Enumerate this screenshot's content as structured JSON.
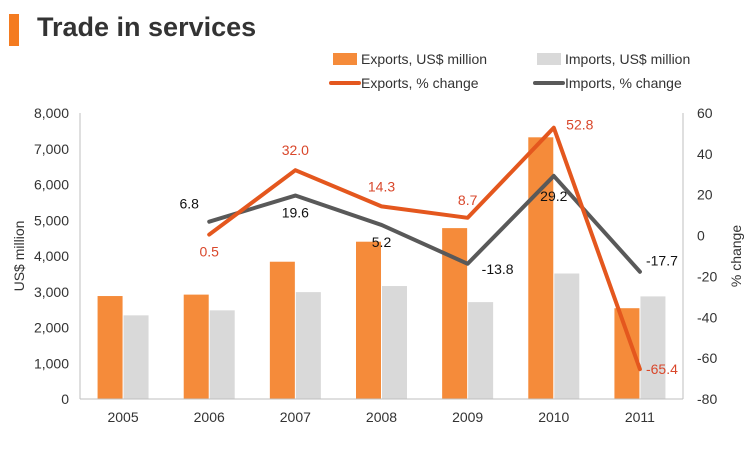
{
  "page_title": "Trade in services",
  "colors": {
    "accent": "#f47b20",
    "exports_bar": "#f58b3a",
    "imports_bar": "#d9d9d9",
    "exports_line": "#e4571e",
    "imports_line": "#595959",
    "exports_label": "#d9472b",
    "axis_text": "#333333"
  },
  "chart_data": {
    "type": "bar",
    "title": "Trade in services",
    "categories": [
      "2005",
      "2006",
      "2007",
      "2008",
      "2009",
      "2010",
      "2011"
    ],
    "ylabel": "US$ million",
    "ylim": [
      0,
      8000
    ],
    "yticks": [
      "0",
      "1,000",
      "2,000",
      "3,000",
      "4,000",
      "5,000",
      "6,000",
      "7,000",
      "8,000"
    ],
    "y2label": "% change",
    "y2lim": [
      -80,
      60
    ],
    "y2ticks": [
      "-80",
      "-60",
      "-40",
      "-20",
      "0",
      "20",
      "40",
      "60"
    ],
    "grid": false,
    "legend_position": "top-right",
    "series": [
      {
        "name": "Exports, US$ million",
        "type": "bar",
        "axis": "left",
        "values": [
          2880,
          2920,
          3840,
          4400,
          4780,
          7320,
          2540
        ]
      },
      {
        "name": "Imports, US$ million",
        "type": "bar",
        "axis": "left",
        "values": [
          2340,
          2480,
          2990,
          3160,
          2710,
          3510,
          2870
        ]
      },
      {
        "name": "Exports, % change",
        "type": "line",
        "axis": "right",
        "values": [
          null,
          0.5,
          32.0,
          14.3,
          8.7,
          52.8,
          -65.4
        ],
        "labels": [
          null,
          "0.5",
          "32.0",
          "14.3",
          "8.7",
          "52.8",
          "-65.4"
        ]
      },
      {
        "name": "Imports, % change",
        "type": "line",
        "axis": "right",
        "values": [
          null,
          6.8,
          19.6,
          5.2,
          -13.8,
          29.2,
          -17.7
        ],
        "labels": [
          null,
          "6.8",
          "19.6",
          "5.2",
          "-13.8",
          "29.2",
          "-17.7"
        ]
      }
    ]
  }
}
